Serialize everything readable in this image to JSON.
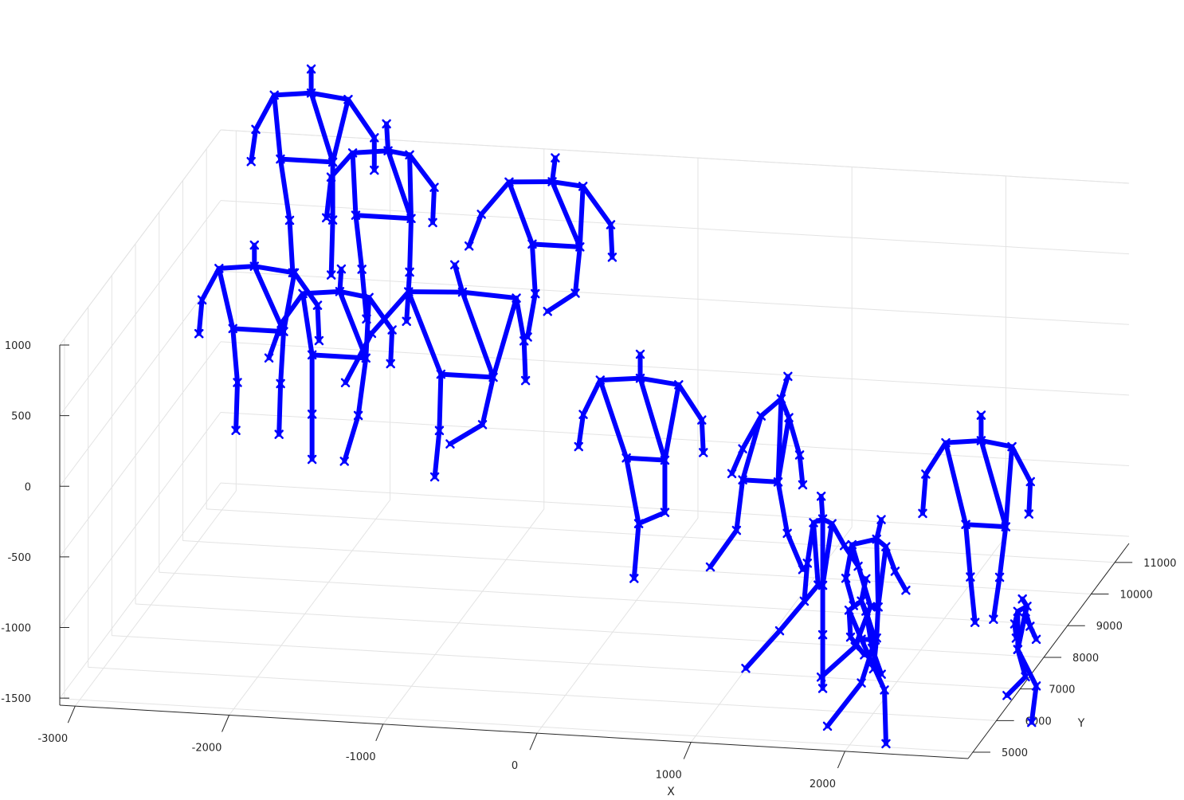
{
  "chart_data": {
    "type": "scatter3d",
    "marker": "x",
    "line_color": "#0000ff",
    "grid": true,
    "xlabel": "X",
    "ylabel": "Y",
    "zlabel": "",
    "x_ticks": [
      -3000,
      -2000,
      -1000,
      0,
      1000,
      2000
    ],
    "y_ticks": [
      5000,
      6000,
      7000,
      8000,
      9000,
      10000,
      11000
    ],
    "z_ticks": [
      -1500,
      -1000,
      -500,
      0,
      500,
      1000
    ],
    "x_tick_labels": [
      "-3000",
      "-2000",
      "-1000",
      "0",
      "1000",
      "2000"
    ],
    "y_tick_labels": [
      "5000",
      "6000",
      "7000",
      "8000",
      "9000",
      "10000",
      "11000"
    ],
    "z_tick_labels": [
      "-1500",
      "-1000",
      "-500",
      "0",
      "500",
      "1000"
    ],
    "xlim": [
      -3100,
      2800
    ],
    "ylim": [
      4800,
      11600
    ],
    "zlim": [
      -1550,
      1000
    ],
    "skeleton_edges": [
      [
        0,
        1
      ],
      [
        1,
        2
      ],
      [
        2,
        3
      ],
      [
        3,
        4
      ],
      [
        1,
        5
      ],
      [
        5,
        6
      ],
      [
        6,
        7
      ],
      [
        1,
        8
      ],
      [
        8,
        9
      ],
      [
        9,
        10
      ],
      [
        8,
        11
      ],
      [
        11,
        12
      ],
      [
        12,
        13
      ],
      [
        2,
        11
      ],
      [
        5,
        8
      ]
    ],
    "joint_names": [
      "head",
      "neck",
      "r_shoulder",
      "r_elbow",
      "r_wrist",
      "l_shoulder",
      "l_elbow",
      "l_wrist",
      "l_hip",
      "l_knee",
      "l_ankle",
      "r_hip",
      "r_knee",
      "r_ankle"
    ],
    "series": [
      {
        "joints": [
          [
            -2360,
            10610,
            1700
          ],
          [
            -2360,
            10610,
            1530
          ],
          [
            -2600,
            10610,
            1500
          ],
          [
            -2720,
            10610,
            1250
          ],
          [
            -2750,
            10610,
            1020
          ],
          [
            -2120,
            10610,
            1500
          ],
          [
            -1950,
            10610,
            1240
          ],
          [
            -1950,
            10610,
            1010
          ],
          [
            -2220,
            10610,
            1050
          ],
          [
            -2220,
            10610,
            640
          ],
          [
            -2230,
            10610,
            250
          ],
          [
            -2560,
            10610,
            1050
          ],
          [
            -2500,
            10610,
            620
          ],
          [
            -2480,
            10610,
            250
          ]
        ]
      },
      {
        "joints": [
          [
            -1840,
            10410,
            1390
          ],
          [
            -1830,
            10410,
            1200
          ],
          [
            -2060,
            10410,
            1170
          ],
          [
            -2200,
            10410,
            990
          ],
          [
            -2230,
            10410,
            700
          ],
          [
            -1690,
            10410,
            1180
          ],
          [
            -1530,
            10410,
            960
          ],
          [
            -1540,
            10410,
            710
          ],
          [
            -1680,
            10410,
            730
          ],
          [
            -1690,
            10410,
            350
          ],
          [
            -1710,
            10410,
            0
          ],
          [
            -2040,
            10410,
            730
          ],
          [
            -2000,
            10410,
            350
          ],
          [
            -1970,
            10410,
            0
          ]
        ]
      },
      {
        "joints": [
          [
            -750,
            10450,
            1210
          ],
          [
            -770,
            10450,
            1040
          ],
          [
            -1050,
            10450,
            1020
          ],
          [
            -1230,
            10450,
            780
          ],
          [
            -1310,
            10450,
            550
          ],
          [
            -570,
            10450,
            1020
          ],
          [
            -390,
            10450,
            760
          ],
          [
            -380,
            10450,
            530
          ],
          [
            -590,
            10450,
            590
          ],
          [
            -620,
            10450,
            260
          ],
          [
            -800,
            10450,
            120
          ],
          [
            -900,
            10450,
            590
          ],
          [
            -880,
            10450,
            240
          ],
          [
            -930,
            10450,
            -70
          ]
        ]
      },
      {
        "joints": [
          [
            -2420,
            8600,
            900
          ],
          [
            -2420,
            8600,
            750
          ],
          [
            -2650,
            8600,
            720
          ],
          [
            -2760,
            8600,
            490
          ],
          [
            -2780,
            8600,
            250
          ],
          [
            -2160,
            8600,
            720
          ],
          [
            -2010,
            8600,
            500
          ],
          [
            -2000,
            8600,
            250
          ],
          [
            -2230,
            8600,
            300
          ],
          [
            -2250,
            8600,
            -70
          ],
          [
            -2260,
            8600,
            -430
          ],
          [
            -2560,
            8600,
            300
          ],
          [
            -2530,
            8600,
            -80
          ],
          [
            -2540,
            8600,
            -420
          ]
        ]
      },
      {
        "joints": [
          [
            -1840,
            8500,
            790
          ],
          [
            -1850,
            8500,
            630
          ],
          [
            -2090,
            8500,
            600
          ],
          [
            -2230,
            8500,
            380
          ],
          [
            -2310,
            8500,
            130
          ],
          [
            -1660,
            8500,
            600
          ],
          [
            -1510,
            8500,
            380
          ],
          [
            -1520,
            8500,
            140
          ],
          [
            -1680,
            8500,
            170
          ],
          [
            -1730,
            8500,
            -240
          ],
          [
            -1820,
            8500,
            -570
          ],
          [
            -2030,
            8500,
            170
          ],
          [
            -2030,
            8500,
            -250
          ],
          [
            -2030,
            8500,
            -570
          ]
        ]
      },
      {
        "joints": [
          [
            -1180,
            9000,
            750
          ],
          [
            -1130,
            9000,
            560
          ],
          [
            -1480,
            9000,
            540
          ],
          [
            -1720,
            9000,
            230
          ],
          [
            -1890,
            9000,
            -130
          ],
          [
            -780,
            9000,
            540
          ],
          [
            -730,
            9000,
            240
          ],
          [
            -720,
            9000,
            -40
          ],
          [
            -930,
            9000,
            -30
          ],
          [
            -1000,
            9000,
            -370
          ],
          [
            -1210,
            9000,
            -520
          ],
          [
            -1270,
            9000,
            -30
          ],
          [
            -1280,
            9000,
            -430
          ],
          [
            -1310,
            9000,
            -760
          ]
        ]
      },
      {
        "joints": [
          [
            160,
            8120,
            400
          ],
          [
            160,
            8120,
            230
          ],
          [
            -100,
            8120,
            200
          ],
          [
            -210,
            8120,
            -50
          ],
          [
            -240,
            8120,
            -280
          ],
          [
            410,
            8120,
            200
          ],
          [
            560,
            8120,
            -40
          ],
          [
            570,
            8120,
            -270
          ],
          [
            320,
            8120,
            -340
          ],
          [
            320,
            8120,
            -710
          ],
          [
            150,
            8120,
            -800
          ],
          [
            70,
            8120,
            -340
          ],
          [
            150,
            8120,
            -800
          ],
          [
            120,
            8120,
            -1190
          ]
        ]
      },
      {
        "joints": [
          [
            1090,
            8310,
            260
          ],
          [
            1080,
            8090,
            150
          ],
          [
            950,
            8090,
            20
          ],
          [
            830,
            8090,
            -220
          ],
          [
            760,
            8090,
            -400
          ],
          [
            1130,
            8090,
            20
          ],
          [
            1200,
            8090,
            -240
          ],
          [
            1220,
            8090,
            -450
          ],
          [
            1060,
            8090,
            -440
          ],
          [
            1120,
            8090,
            -800
          ],
          [
            1220,
            8090,
            -1050
          ],
          [
            830,
            8090,
            -440
          ],
          [
            790,
            8090,
            -800
          ],
          [
            620,
            8090,
            -1070
          ]
        ]
      },
      {
        "joints": [
          [
            2210,
            9190,
            -140
          ],
          [
            2210,
            9190,
            -320
          ],
          [
            1980,
            9190,
            -350
          ],
          [
            1850,
            9190,
            -580
          ],
          [
            1830,
            9190,
            -860
          ],
          [
            2410,
            9190,
            -350
          ],
          [
            2530,
            9190,
            -590
          ],
          [
            2520,
            9190,
            -820
          ],
          [
            2370,
            9190,
            -920
          ],
          [
            2330,
            9190,
            -1280
          ],
          [
            2290,
            9190,
            -1580
          ],
          [
            2110,
            9190,
            -920
          ],
          [
            2140,
            9190,
            -1290
          ],
          [
            2170,
            9190,
            -1610
          ]
        ]
      },
      {
        "joints": [
          [
            1500,
            7050,
            -280
          ],
          [
            1510,
            7050,
            -440
          ],
          [
            1450,
            7050,
            -470
          ],
          [
            1410,
            7050,
            -760
          ],
          [
            1390,
            7050,
            -1030
          ],
          [
            1570,
            7050,
            -470
          ],
          [
            1650,
            7050,
            -620
          ],
          [
            1740,
            7050,
            -760
          ],
          [
            1510,
            7050,
            -910
          ],
          [
            1510,
            7050,
            -1260
          ],
          [
            1510,
            7050,
            -1640
          ],
          [
            1480,
            7050,
            -910
          ],
          [
            1230,
            7050,
            -1250
          ],
          [
            1010,
            7050,
            -1530
          ]
        ]
      },
      {
        "joints": [
          [
            1910,
            6920,
            -390
          ],
          [
            1880,
            6920,
            -530
          ],
          [
            1720,
            6920,
            -580
          ],
          [
            1680,
            6920,
            -820
          ],
          [
            1730,
            6920,
            -1010
          ],
          [
            1940,
            6920,
            -580
          ],
          [
            2000,
            6920,
            -750
          ],
          [
            2070,
            6920,
            -880
          ],
          [
            1890,
            6920,
            -1010
          ],
          [
            1880,
            6920,
            -1230
          ],
          [
            1860,
            6920,
            -1450
          ],
          [
            1840,
            6920,
            -1010
          ],
          [
            1740,
            6920,
            -1300
          ],
          [
            1520,
            6920,
            -1530
          ]
        ]
      },
      {
        "joints": [
          [
            1860,
            6600,
            -740
          ],
          [
            1830,
            6600,
            -900
          ],
          [
            1750,
            6600,
            -970
          ],
          [
            1760,
            6600,
            -1160
          ],
          [
            1850,
            6600,
            -1280
          ],
          [
            1860,
            6600,
            -970
          ],
          [
            1900,
            6600,
            -1230
          ],
          [
            1960,
            6600,
            -1410
          ],
          [
            1920,
            6600,
            -1170
          ],
          [
            1830,
            6600,
            -1480
          ],
          [
            1610,
            6600,
            -1800
          ],
          [
            1830,
            6600,
            -1170
          ],
          [
            1980,
            6600,
            -1520
          ],
          [
            1990,
            6600,
            -1900
          ]
        ]
      },
      {
        "joints": [
          [
            2750,
            7420,
            -1010
          ],
          [
            2780,
            7420,
            -1060
          ],
          [
            2720,
            7420,
            -1100
          ],
          [
            2700,
            7420,
            -1190
          ],
          [
            2710,
            7420,
            -1290
          ],
          [
            2770,
            7420,
            -1100
          ],
          [
            2800,
            7420,
            -1200
          ],
          [
            2840,
            7420,
            -1290
          ],
          [
            2720,
            7420,
            -1370
          ],
          [
            2770,
            7420,
            -1560
          ],
          [
            2650,
            7420,
            -1700
          ],
          [
            2720,
            7420,
            -1370
          ],
          [
            2840,
            7420,
            -1620
          ],
          [
            2810,
            7420,
            -1880
          ]
        ]
      }
    ]
  }
}
